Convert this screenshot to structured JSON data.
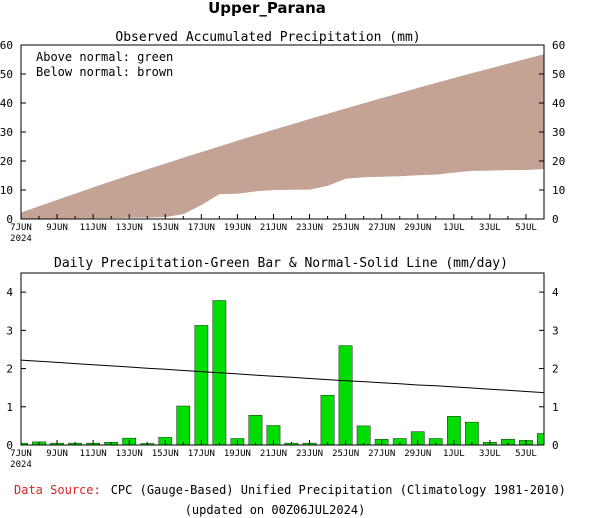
{
  "title": "Upper_Parana",
  "chart_data": [
    {
      "type": "area",
      "title": "Observed Accumulated Precipitation (mm)",
      "legend": [
        "Above normal: green",
        "Below normal: brown"
      ],
      "legend_placement": "top-left",
      "x_tick_labels": [
        "7JUN",
        "9JUN",
        "11JUN",
        "13JUN",
        "15JUN",
        "17JUN",
        "19JUN",
        "21JUN",
        "23JUN",
        "25JUN",
        "27JUN",
        "29JUN",
        "1JUL",
        "3JUL",
        "5JUL"
      ],
      "x_year_label": "2024",
      "ylim": [
        0,
        60
      ],
      "y_ticks": [
        0,
        10,
        20,
        30,
        40,
        50,
        60
      ],
      "x": [
        "7JUN",
        "8JUN",
        "9JUN",
        "10JUN",
        "11JUN",
        "12JUN",
        "13JUN",
        "14JUN",
        "15JUN",
        "16JUN",
        "17JUN",
        "18JUN",
        "19JUN",
        "20JUN",
        "21JUN",
        "22JUN",
        "23JUN",
        "24JUN",
        "25JUN",
        "26JUN",
        "27JUN",
        "28JUN",
        "29JUN",
        "30JUN",
        "1JUL",
        "2JUL",
        "3JUL",
        "4JUL",
        "5JUL",
        "6JUL"
      ],
      "series": [
        {
          "name": "Normal",
          "values": [
            2.2,
            4.4,
            6.6,
            8.7,
            10.9,
            13.0,
            15.1,
            17.1,
            19.1,
            21.1,
            23.1,
            25.0,
            27.0,
            28.9,
            30.8,
            32.6,
            34.5,
            36.3,
            38.1,
            39.9,
            41.7,
            43.4,
            45.2,
            46.9,
            48.6,
            50.3,
            51.9,
            53.6,
            55.2,
            56.8
          ]
        },
        {
          "name": "Observed",
          "values": [
            0.05,
            0.1,
            0.15,
            0.2,
            0.25,
            0.3,
            0.45,
            0.5,
            0.65,
            1.7,
            4.8,
            8.6,
            8.7,
            9.5,
            10.0,
            10.1,
            10.15,
            11.4,
            13.9,
            14.4,
            14.6,
            14.75,
            15.1,
            15.3,
            16.0,
            16.6,
            16.7,
            16.85,
            16.9,
            17.2
          ]
        }
      ],
      "fill_colors": {
        "above_normal": "#00dd00",
        "below_normal": "#c4a294"
      }
    },
    {
      "type": "bar",
      "title": "Daily Precipitation-Green Bar & Normal-Solid Line (mm/day)",
      "x_tick_labels": [
        "7JUN",
        "9JUN",
        "11JUN",
        "13JUN",
        "15JUN",
        "17JUN",
        "19JUN",
        "21JUN",
        "23JUN",
        "25JUN",
        "27JUN",
        "29JUN",
        "1JUL",
        "3JUL",
        "5JUL"
      ],
      "x_year_label": "2024",
      "ylim": [
        0,
        4.5
      ],
      "y_ticks": [
        0,
        1,
        2,
        3,
        4
      ],
      "categories": [
        "7JUN",
        "8JUN",
        "9JUN",
        "10JUN",
        "11JUN",
        "12JUN",
        "13JUN",
        "14JUN",
        "15JUN",
        "16JUN",
        "17JUN",
        "18JUN",
        "19JUN",
        "20JUN",
        "21JUN",
        "22JUN",
        "23JUN",
        "24JUN",
        "25JUN",
        "26JUN",
        "27JUN",
        "28JUN",
        "29JUN",
        "30JUN",
        "1JUL",
        "2JUL",
        "3JUL",
        "4JUL",
        "5JUL",
        "6JUL"
      ],
      "series": [
        {
          "name": "Observed",
          "type": "bar",
          "color": "#00dd00",
          "values": [
            0.05,
            0.08,
            0.05,
            0.05,
            0.05,
            0.07,
            0.18,
            0.04,
            0.2,
            1.02,
            3.13,
            3.78,
            0.17,
            0.78,
            0.51,
            0.05,
            0.05,
            1.3,
            2.6,
            0.5,
            0.15,
            0.17,
            0.35,
            0.17,
            0.75,
            0.6,
            0.07,
            0.15,
            0.12,
            0.3
          ]
        },
        {
          "name": "Normal",
          "type": "line",
          "color": "#000000",
          "values": [
            2.22,
            2.19,
            2.16,
            2.13,
            2.1,
            2.07,
            2.04,
            2.01,
            1.98,
            1.95,
            1.92,
            1.89,
            1.86,
            1.83,
            1.8,
            1.77,
            1.74,
            1.71,
            1.68,
            1.66,
            1.63,
            1.6,
            1.57,
            1.55,
            1.52,
            1.49,
            1.46,
            1.43,
            1.4,
            1.37
          ]
        }
      ]
    }
  ],
  "footer": {
    "source_label": "Data Source:",
    "source_text": "CPC (Gauge-Based) Unified Precipitation (Climatology 1981-2010)",
    "updated": "(updated on 00Z06JUL2024)"
  },
  "colors": {
    "source_label": "#dd2222"
  }
}
